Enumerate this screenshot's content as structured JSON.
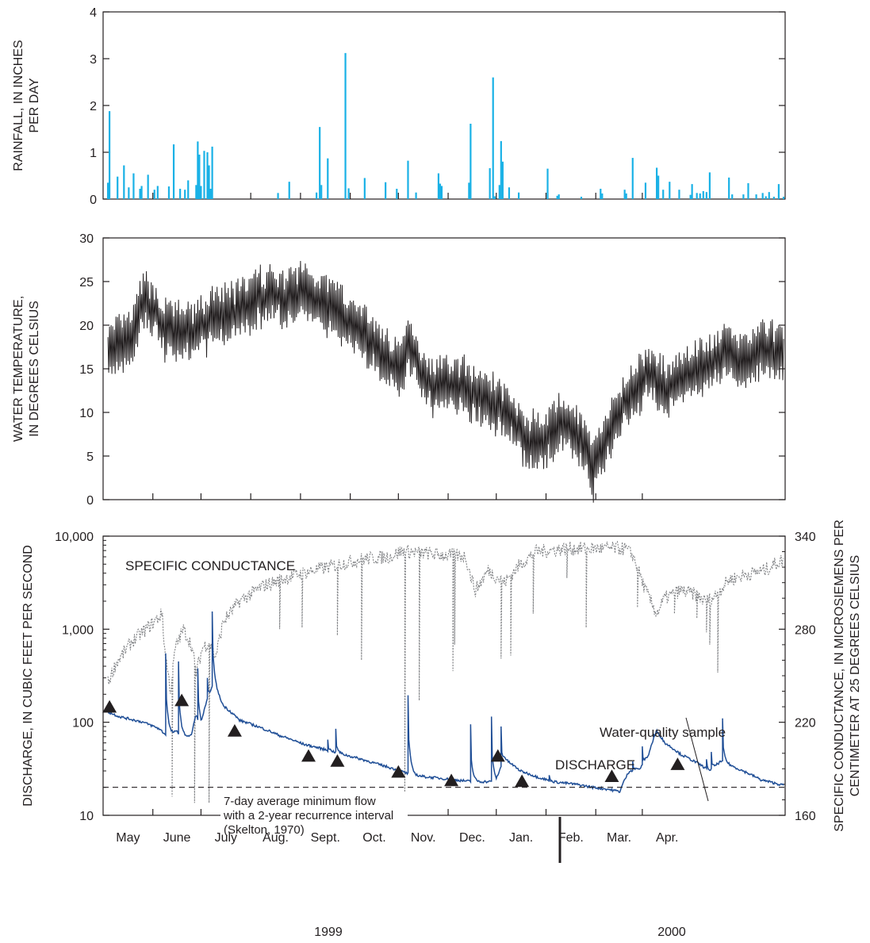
{
  "colors": {
    "rainfall": "#19b1e6",
    "temperature": "#231f20",
    "conductance": "#808285",
    "discharge": "#1f4e96",
    "axis": "#231f20"
  },
  "chart_data": [
    {
      "type": "bar",
      "name": "rainfall",
      "ylabel": [
        "RAINFALL, IN INCHES",
        "PER DAY"
      ],
      "ylim": [
        0,
        4
      ],
      "yticks": [
        "0",
        "1",
        "2",
        "3",
        "4"
      ],
      "x_unit": "days since May 1, 1999",
      "bars": [
        [
          3,
          0.35
        ],
        [
          4,
          1.88
        ],
        [
          9,
          0.48
        ],
        [
          13,
          0.72
        ],
        [
          16,
          0.25
        ],
        [
          19,
          0.55
        ],
        [
          23,
          0.22
        ],
        [
          24,
          0.28
        ],
        [
          28,
          0.52
        ],
        [
          32,
          0.2
        ],
        [
          34,
          0.28
        ],
        [
          41,
          0.27
        ],
        [
          44,
          1.17
        ],
        [
          48,
          0.22
        ],
        [
          51,
          0.2
        ],
        [
          53,
          0.4
        ],
        [
          58,
          0.3
        ],
        [
          59,
          1.23
        ],
        [
          60,
          0.95
        ],
        [
          61,
          0.28
        ],
        [
          63,
          1.03
        ],
        [
          65,
          1.0
        ],
        [
          66,
          0.72
        ],
        [
          67,
          0.22
        ],
        [
          68,
          1.12
        ],
        [
          109,
          0.13
        ],
        [
          116,
          0.37
        ],
        [
          133,
          0.14
        ],
        [
          135,
          1.54
        ],
        [
          136,
          0.3
        ],
        [
          140,
          0.87
        ],
        [
          151,
          3.12
        ],
        [
          153,
          0.23
        ],
        [
          163,
          0.45
        ],
        [
          176,
          0.36
        ],
        [
          183,
          0.22
        ],
        [
          190,
          0.82
        ],
        [
          195,
          0.14
        ],
        [
          209,
          0.55
        ],
        [
          210,
          0.33
        ],
        [
          211,
          0.28
        ],
        [
          228,
          0.35
        ],
        [
          229,
          1.61
        ],
        [
          241,
          0.66
        ],
        [
          243,
          2.6
        ],
        [
          244,
          0.06
        ],
        [
          247,
          0.3
        ],
        [
          248,
          1.24
        ],
        [
          249,
          0.8
        ],
        [
          253,
          0.25
        ],
        [
          259,
          0.14
        ],
        [
          277,
          0.65
        ],
        [
          283,
          0.07
        ],
        [
          284,
          0.1
        ],
        [
          298,
          0.05
        ],
        [
          310,
          0.22
        ],
        [
          311,
          0.12
        ],
        [
          325,
          0.2
        ],
        [
          326,
          0.12
        ],
        [
          330,
          0.88
        ],
        [
          338,
          0.35
        ],
        [
          345,
          0.67
        ],
        [
          346,
          0.5
        ],
        [
          349,
          0.2
        ],
        [
          353,
          0.37
        ],
        [
          359,
          0.2
        ],
        [
          366,
          0.09
        ],
        [
          367,
          0.32
        ],
        [
          370,
          0.13
        ],
        [
          372,
          0.12
        ],
        [
          374,
          0.17
        ],
        [
          376,
          0.15
        ],
        [
          378,
          0.57
        ],
        [
          390,
          0.46
        ],
        [
          392,
          0.1
        ],
        [
          399,
          0.1
        ],
        [
          402,
          0.34
        ],
        [
          407,
          0.1
        ],
        [
          411,
          0.13
        ],
        [
          413,
          0.06
        ],
        [
          415,
          0.15
        ],
        [
          418,
          0.05
        ],
        [
          421,
          0.32
        ],
        [
          424,
          0.05
        ]
      ]
    },
    {
      "type": "line",
      "name": "water-temperature",
      "ylabel": [
        "WATER TEMPERATURE,",
        "IN DEGREES CELSIUS"
      ],
      "ylim": [
        0,
        30
      ],
      "yticks": [
        "0",
        "5",
        "10",
        "15",
        "20",
        "25",
        "30"
      ],
      "mean_curve": [
        [
          0,
          16.5
        ],
        [
          10,
          17.5
        ],
        [
          18,
          18.5
        ],
        [
          25,
          22.8
        ],
        [
          30,
          22
        ],
        [
          38,
          19.5
        ],
        [
          45,
          19.5
        ],
        [
          55,
          19
        ],
        [
          70,
          21
        ],
        [
          82,
          21.5
        ],
        [
          95,
          23
        ],
        [
          105,
          23.5
        ],
        [
          115,
          23
        ],
        [
          125,
          24
        ],
        [
          140,
          22.5
        ],
        [
          150,
          21
        ],
        [
          160,
          19.5
        ],
        [
          168,
          18
        ],
        [
          175,
          16.5
        ],
        [
          185,
          15
        ],
        [
          190,
          17.5
        ],
        [
          195,
          16.8
        ],
        [
          200,
          13.5
        ],
        [
          210,
          13
        ],
        [
          225,
          13
        ],
        [
          240,
          11.5
        ],
        [
          255,
          9.5
        ],
        [
          265,
          6.5
        ],
        [
          275,
          6.8
        ],
        [
          285,
          8.8
        ],
        [
          295,
          7.5
        ],
        [
          300,
          6
        ],
        [
          305,
          3
        ],
        [
          310,
          5.5
        ],
        [
          320,
          9.5
        ],
        [
          330,
          12.5
        ],
        [
          340,
          14.5
        ],
        [
          350,
          12.5
        ],
        [
          360,
          14
        ],
        [
          375,
          15.5
        ],
        [
          390,
          16.5
        ],
        [
          400,
          16
        ],
        [
          410,
          17
        ],
        [
          425,
          17
        ]
      ],
      "amplitude": 2.4
    },
    {
      "type": "line",
      "name": "discharge-and-specific-conductance",
      "ylabel_left": "DISCHARGE, IN CUBIC FEET PER SECOND",
      "ylabel_right": [
        "SPECIFIC CONDUCTANCE, IN MICROSIEMENS PER",
        "CENTIMETER AT 25 DEGREES CELSIUS"
      ],
      "y_left_scale": "log",
      "y_left_lim": [
        10,
        10000
      ],
      "y_left_ticks": [
        "10",
        "100",
        "1,000",
        "10,000"
      ],
      "y_right_lim": [
        160,
        340
      ],
      "y_right_ticks": [
        "160",
        "220",
        "280",
        "340"
      ],
      "x_months": [
        "May",
        "June",
        "July",
        "Aug.",
        "Sept.",
        "Oct.",
        "Nov.",
        "Dec.",
        "Jan.",
        "Feb.",
        "Mar.",
        "Apr."
      ],
      "x_years": [
        "1999",
        "2000"
      ],
      "series": [
        {
          "name": "DISCHARGE",
          "baseline": [
            [
              0,
              135
            ],
            [
              10,
              115
            ],
            [
              25,
              100
            ],
            [
              35,
              85
            ],
            [
              40,
              70
            ],
            [
              46,
              80
            ],
            [
              49,
              70
            ],
            [
              55,
              72
            ],
            [
              58,
              120
            ],
            [
              61,
              88
            ],
            [
              68,
              240
            ],
            [
              75,
              150
            ],
            [
              85,
              105
            ],
            [
              100,
              85
            ],
            [
              110,
              72
            ],
            [
              125,
              58
            ],
            [
              140,
              50
            ],
            [
              152,
              44
            ],
            [
              170,
              36
            ],
            [
              185,
              30
            ],
            [
              190,
              28
            ],
            [
              200,
              26
            ],
            [
              215,
              24.5
            ],
            [
              230,
              23
            ],
            [
              245,
              23
            ],
            [
              250,
              40
            ],
            [
              260,
              30
            ],
            [
              270,
              26
            ],
            [
              280,
              23
            ],
            [
              295,
              21.5
            ],
            [
              305,
              20
            ],
            [
              315,
              19
            ],
            [
              322,
              18
            ],
            [
              328,
              30
            ],
            [
              335,
              32
            ],
            [
              340,
              45
            ],
            [
              345,
              80
            ],
            [
              350,
              60
            ],
            [
              360,
              45
            ],
            [
              372,
              35
            ],
            [
              378,
              30
            ],
            [
              385,
              38
            ],
            [
              395,
              32
            ],
            [
              410,
              24
            ],
            [
              424,
              21
            ]
          ],
          "peaks": [
            [
              39,
              550
            ],
            [
              47,
              450
            ],
            [
              59,
              380
            ],
            [
              65,
              300
            ],
            [
              68,
              1550
            ],
            [
              140,
              65
            ],
            [
              145,
              85
            ],
            [
              190,
              195
            ],
            [
              229,
              95
            ],
            [
              242,
              115
            ],
            [
              248,
              90
            ],
            [
              278,
              27
            ],
            [
              330,
              38
            ],
            [
              336,
              55
            ],
            [
              343,
              75
            ],
            [
              376,
              40
            ],
            [
              379,
              48
            ],
            [
              386,
              110
            ]
          ]
        },
        {
          "name": "SPECIFIC CONDUCTANCE",
          "baseline": [
            [
              0,
              238
            ],
            [
              8,
              258
            ],
            [
              18,
              272
            ],
            [
              30,
              283
            ],
            [
              37,
              290
            ],
            [
              38,
              270
            ],
            [
              42,
              240
            ],
            [
              45,
              268
            ],
            [
              50,
              280
            ],
            [
              55,
              270
            ],
            [
              58,
              252
            ],
            [
              62,
              268
            ],
            [
              66,
              272
            ],
            [
              70,
              262
            ],
            [
              75,
              285
            ],
            [
              85,
              298
            ],
            [
              100,
              308
            ],
            [
              120,
              315
            ],
            [
              140,
              320
            ],
            [
              160,
              325
            ],
            [
              180,
              327
            ],
            [
              185,
              330
            ],
            [
              190,
              330
            ],
            [
              200,
              329
            ],
            [
              210,
              328
            ],
            [
              226,
              327
            ],
            [
              228,
              318
            ],
            [
              232,
              305
            ],
            [
              240,
              318
            ],
            [
              250,
              310
            ],
            [
              260,
              322
            ],
            [
              270,
              330
            ],
            [
              290,
              332
            ],
            [
              310,
              332
            ],
            [
              325,
              332
            ],
            [
              330,
              328
            ],
            [
              338,
              305
            ],
            [
              345,
              290
            ],
            [
              350,
              300
            ],
            [
              360,
              305
            ],
            [
              370,
              302
            ],
            [
              375,
              298
            ],
            [
              380,
              300
            ],
            [
              390,
              312
            ],
            [
              400,
              315
            ],
            [
              412,
              318
            ],
            [
              424,
              325
            ]
          ],
          "spikes": [
            [
              43,
              172
            ],
            [
              57,
              168
            ],
            [
              66,
              168
            ],
            [
              110,
              280
            ],
            [
              124,
              281
            ],
            [
              146,
              276
            ],
            [
              161,
              260
            ],
            [
              188,
              166
            ],
            [
              197,
              234
            ],
            [
              218,
              253
            ],
            [
              219,
              270
            ],
            [
              248,
              261
            ],
            [
              254,
              263
            ],
            [
              268,
              290
            ],
            [
              289,
              313
            ],
            [
              301,
              281
            ],
            [
              333,
              294
            ],
            [
              356,
              290
            ],
            [
              370,
              287
            ],
            [
              376,
              278
            ],
            [
              378,
              270
            ],
            [
              383,
              252
            ]
          ]
        }
      ],
      "reference_line": {
        "value": 20,
        "label": [
          "7-day average minimum flow",
          "with a 2-year recurrence interval",
          "(Skelton, 1970)"
        ]
      },
      "water_quality_samples": [
        [
          4,
          145
        ],
        [
          49,
          170
        ],
        [
          82,
          80
        ],
        [
          128,
          43
        ],
        [
          146,
          38
        ],
        [
          184,
          29
        ],
        [
          217,
          23.5
        ],
        [
          246,
          43
        ],
        [
          261,
          23
        ],
        [
          317,
          26
        ],
        [
          358,
          35
        ]
      ],
      "annotations": {
        "specific_conductance": "SPECIFIC CONDUCTANCE",
        "discharge": "DISCHARGE",
        "water_quality_sample": "Water-quality sample"
      }
    }
  ]
}
